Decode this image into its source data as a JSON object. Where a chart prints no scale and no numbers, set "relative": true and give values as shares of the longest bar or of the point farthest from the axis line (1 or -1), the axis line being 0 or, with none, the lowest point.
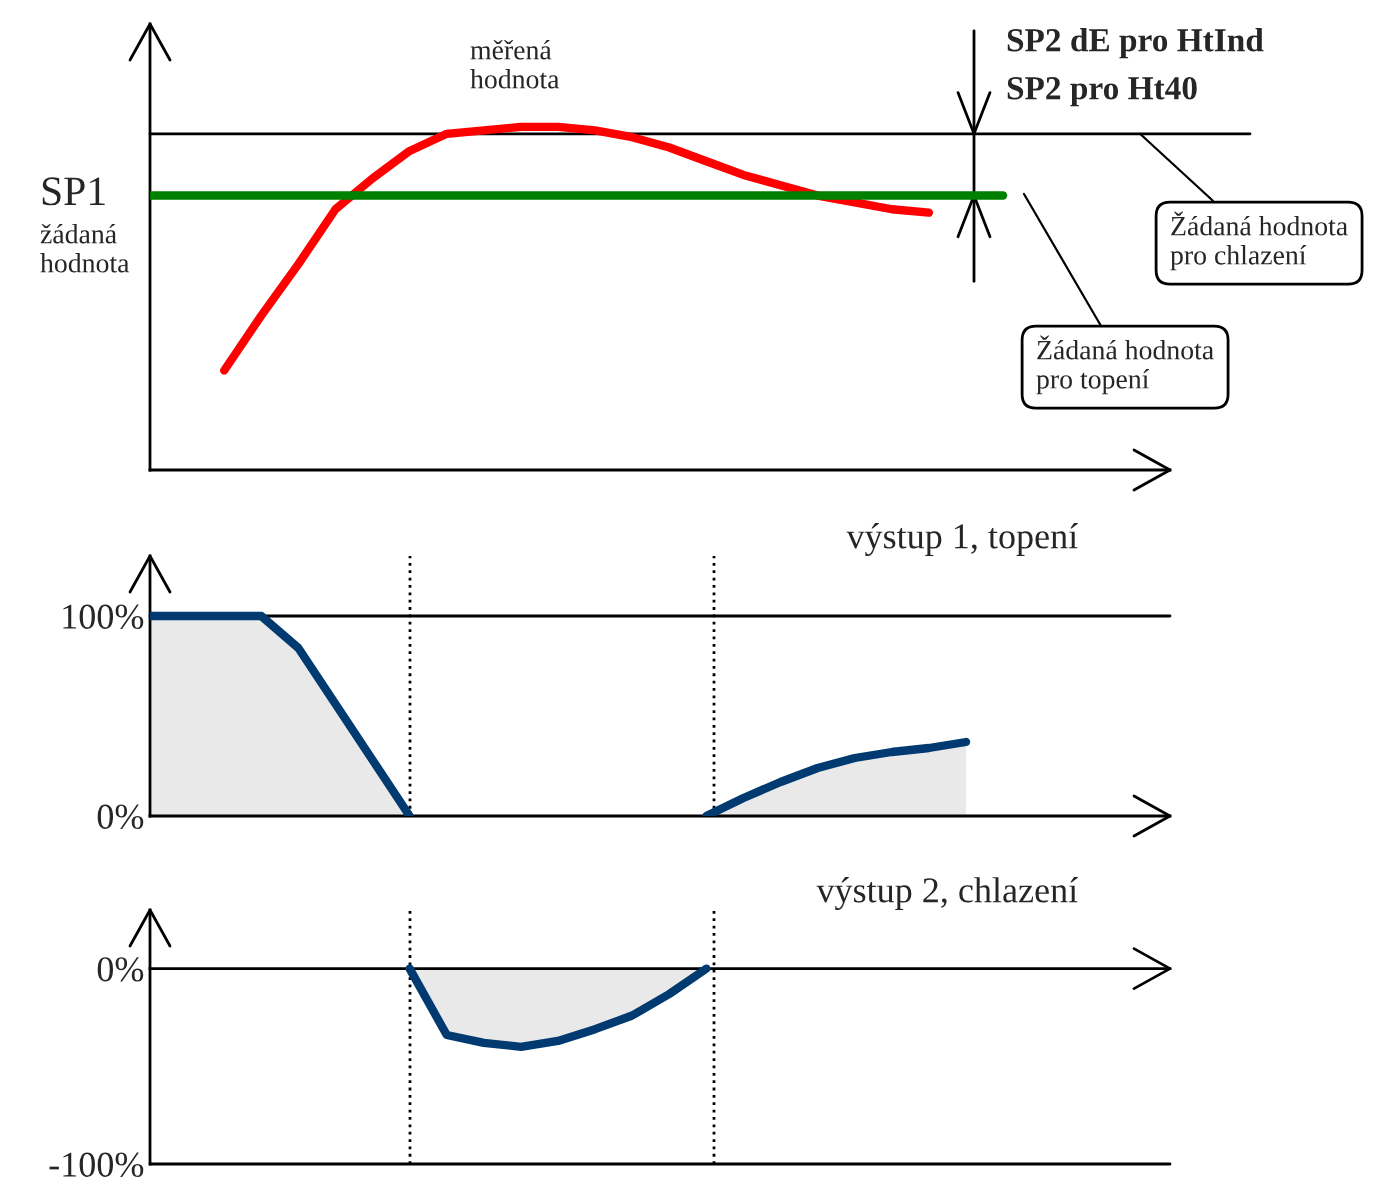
{
  "chart_data": [
    {
      "type": "line",
      "relative": true,
      "categories": [
        null,
        null,
        null,
        null,
        null,
        null,
        null,
        null,
        null,
        null,
        null,
        null,
        null,
        null,
        null,
        null,
        null,
        null,
        null,
        null,
        null,
        null,
        null,
        null,
        null,
        null,
        null,
        null
      ],
      "tick_labels": false,
      "legend": false,
      "series": [
        {
          "color": "#ff0000",
          "values": [
            null,
            null,
            0.29,
            0.45,
            0.6,
            0.76,
            0.85,
            0.93,
            0.98,
            0.99,
            1.0,
            1.0,
            0.99,
            0.97,
            0.94,
            0.9,
            0.86,
            0.83,
            0.8,
            0.78,
            0.76,
            0.75,
            null,
            null,
            null,
            null,
            null,
            null
          ]
        },
        {
          "color": "#008000",
          "values": [
            0.8,
            0.8,
            0.8,
            0.8,
            0.8,
            0.8,
            0.8,
            0.8,
            0.8,
            0.8,
            0.8,
            0.8,
            0.8,
            0.8,
            0.8,
            0.8,
            0.8,
            0.8,
            0.8,
            0.8,
            0.8,
            0.8,
            0.8,
            0.8,
            null,
            null,
            null,
            null
          ]
        }
      ],
      "ref_lines": [
        {
          "axis": "y",
          "value": 0.98,
          "color": "#000000",
          "line_style": "solid"
        }
      ],
      "annotations": [
        "měřená\nhodnota",
        "SP1",
        "žádaná\nhodnota",
        "SP2 dE pro HtInd",
        "SP2 pro Ht40",
        {
          "text": "Žádaná hodnota\npro chlazení",
          "y": 0.98
        },
        "Žádaná hodnota\npro topení"
      ]
    },
    {
      "type": "area",
      "title": "výstup 1, topení",
      "categories": [
        null,
        null,
        null,
        null,
        null,
        null,
        null,
        null,
        null,
        null,
        null,
        null,
        null,
        null,
        null,
        null,
        null,
        null,
        null,
        null,
        null,
        null,
        null,
        null,
        null,
        null,
        null,
        null
      ],
      "ylim": [
        0,
        130
      ],
      "yticks": [
        {
          "value": 0,
          "label": "0%"
        },
        {
          "value": 100,
          "label": "100%"
        }
      ],
      "tick_labels": "y",
      "legend": false,
      "series": [
        {
          "color": "#003a70",
          "values": [
            100,
            100,
            100,
            100,
            84,
            56,
            28,
            0,
            null,
            null,
            null,
            null,
            null,
            null,
            null,
            null,
            null,
            null,
            null,
            null,
            null,
            null,
            null,
            null,
            null,
            null,
            null,
            null
          ]
        },
        {
          "color": "#003a70",
          "values": [
            null,
            null,
            null,
            null,
            null,
            null,
            null,
            null,
            null,
            null,
            null,
            null,
            null,
            null,
            null,
            0,
            9,
            17,
            24,
            29,
            32,
            34,
            37,
            null,
            null,
            null,
            null,
            null
          ]
        }
      ],
      "ref_lines": [
        {
          "axis": "y",
          "value": 100,
          "color": "#000000",
          "line_style": "solid"
        }
      ]
    },
    {
      "type": "area",
      "title": "výstup 2, chlazení",
      "categories": [
        null,
        null,
        null,
        null,
        null,
        null,
        null,
        null,
        null,
        null,
        null,
        null,
        null,
        null,
        null,
        null,
        null,
        null,
        null,
        null,
        null,
        null,
        null,
        null,
        null,
        null,
        null,
        null
      ],
      "ylim": [
        -100,
        30
      ],
      "yticks": [
        {
          "value": -100,
          "label": "-100%"
        },
        {
          "value": 0,
          "label": "0%"
        }
      ],
      "tick_labels": "y",
      "legend": false,
      "series": [
        {
          "color": "#003a70",
          "values": [
            null,
            null,
            null,
            null,
            null,
            null,
            null,
            0,
            -34,
            -38,
            -40,
            -37,
            -31,
            -24,
            -13,
            0,
            null,
            null,
            null,
            null,
            null,
            null,
            null,
            null,
            null,
            null,
            null,
            null
          ]
        }
      ],
      "ref_lines": [
        {
          "axis": "y",
          "value": -100,
          "color": "#000000",
          "line_style": "solid"
        }
      ]
    }
  ]
}
